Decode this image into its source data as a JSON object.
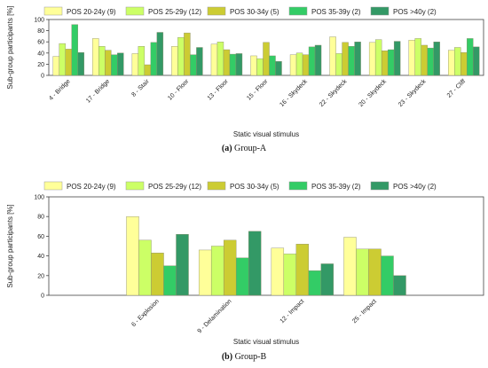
{
  "chart_data": [
    {
      "type": "bar",
      "caption_letter": "(a)",
      "caption_text": "Group-A",
      "xlabel": "Static visual stimulus",
      "ylabel": "Sub-group participants [%]",
      "ylim": [
        0,
        100
      ],
      "yticks": [
        0,
        20,
        40,
        60,
        80,
        100
      ],
      "legend_position": "top",
      "categories": [
        "4 - Bridge",
        "17 - Bridge",
        "8 - Stair",
        "10 - Floor",
        "13 - Floor",
        "15 - Floor",
        "16 - Skydeck",
        "22 - Skydeck",
        "20 - Skydeck",
        "23 - Skydeck",
        "27 - Cliff"
      ],
      "series": [
        {
          "name": "POS 20-24y (9)",
          "color": "#ffff99",
          "values": [
            34,
            66,
            39,
            52,
            56,
            35,
            37,
            69,
            59,
            63,
            45
          ]
        },
        {
          "name": "POS 25-29y (12)",
          "color": "#ccff66",
          "values": [
            57,
            52,
            52,
            68,
            60,
            30,
            40,
            39,
            64,
            66,
            50
          ]
        },
        {
          "name": "POS 30-34y (5)",
          "color": "#cccc33",
          "values": [
            47,
            45,
            19,
            76,
            46,
            59,
            37,
            59,
            44,
            54,
            41
          ]
        },
        {
          "name": "POS 35-39y (2)",
          "color": "#33cc66",
          "values": [
            91,
            37,
            59,
            37,
            38,
            35,
            51,
            52,
            46,
            49,
            66
          ]
        },
        {
          "name": "POS >40y (2)",
          "color": "#339966",
          "values": [
            41,
            40,
            77,
            50,
            39,
            25,
            54,
            60,
            61,
            60,
            51
          ]
        }
      ]
    },
    {
      "type": "bar",
      "caption_letter": "(b)",
      "caption_text": "Group-B",
      "xlabel": "Static visual stimulus",
      "ylabel": "Sub-group participants [%]",
      "ylim": [
        0,
        100
      ],
      "yticks": [
        0,
        20,
        40,
        60,
        80,
        100
      ],
      "legend_position": "top",
      "categories": [
        "6 - Explosion",
        "9 - Delamination",
        "12 - Impact",
        "25 - Impact"
      ],
      "series": [
        {
          "name": "POS 20-24y (9)",
          "color": "#ffff99",
          "values": [
            80,
            46,
            48,
            59
          ]
        },
        {
          "name": "POS 25-29y (12)",
          "color": "#ccff66",
          "values": [
            56,
            50,
            42,
            47
          ]
        },
        {
          "name": "POS 30-34y (5)",
          "color": "#cccc33",
          "values": [
            43,
            56,
            52,
            47
          ]
        },
        {
          "name": "POS 35-39y (2)",
          "color": "#33cc66",
          "values": [
            30,
            38,
            25,
            40
          ]
        },
        {
          "name": "POS >40y (2)",
          "color": "#339966",
          "values": [
            62,
            65,
            32,
            20
          ]
        }
      ]
    }
  ]
}
